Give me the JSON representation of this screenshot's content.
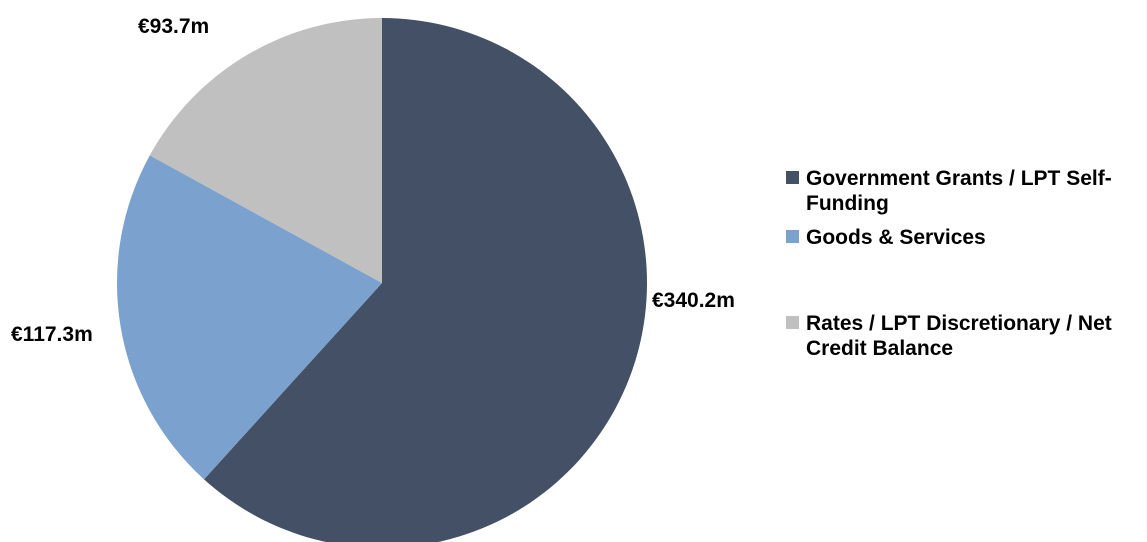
{
  "chart_data": {
    "type": "pie",
    "title": "",
    "slices": [
      {
        "label": "Government Grants / LPT Self-Funding",
        "value": 340.2,
        "value_label": "€340.2m",
        "color": "#435066"
      },
      {
        "label": "Goods & Services",
        "value": 117.3,
        "value_label": "€117.3m",
        "color": "#7ba1ce"
      },
      {
        "label": "Rates / LPT Discretionary / Net Credit Balance",
        "value": 93.7,
        "value_label": "€93.7m",
        "color": "#c0c0c0"
      }
    ],
    "start_angle": "12 o'clock",
    "direction": "clockwise",
    "legend_position": "right"
  }
}
